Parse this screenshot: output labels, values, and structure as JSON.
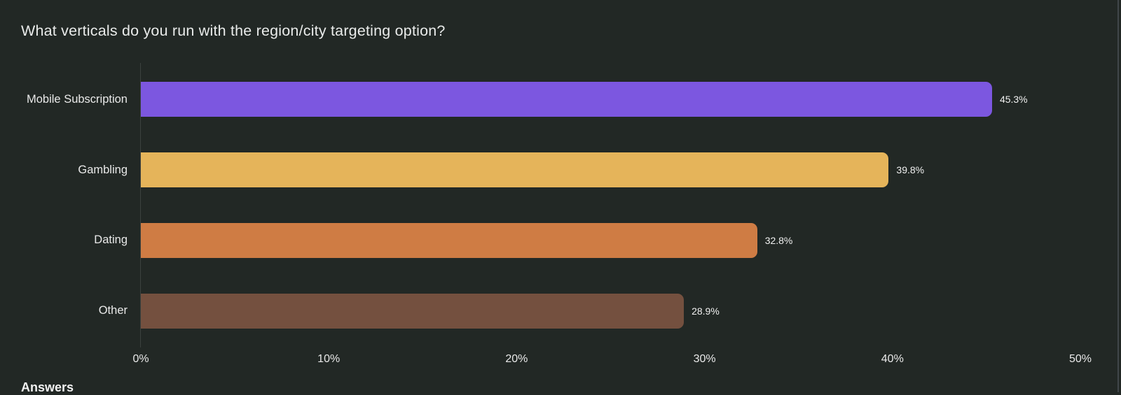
{
  "page": {
    "background": "#222825",
    "answers_heading": "Answers"
  },
  "chart_data": {
    "type": "bar",
    "orientation": "horizontal",
    "title": "What verticals do you run with the region/city targeting option?",
    "categories": [
      "Mobile Subscription",
      "Gambling",
      "Dating",
      "Other"
    ],
    "values": [
      45.3,
      39.8,
      32.8,
      28.9
    ],
    "value_labels": [
      "45.3%",
      "39.8%",
      "32.8%",
      "28.9%"
    ],
    "bar_colors": [
      "#7c57e0",
      "#e5b45a",
      "#cf7c44",
      "#74503f"
    ],
    "xlabel": "",
    "ylabel": "",
    "xlim": [
      0,
      50
    ],
    "x_tick_values": [
      0,
      10,
      20,
      30,
      40,
      50
    ],
    "x_tick_labels": [
      "0%",
      "10%",
      "20%",
      "30%",
      "40%",
      "50%"
    ],
    "grid": false,
    "legend": false,
    "background_color": "#222825",
    "axis_line_color": "#3b413e",
    "text_color": "#e9e9e9"
  }
}
